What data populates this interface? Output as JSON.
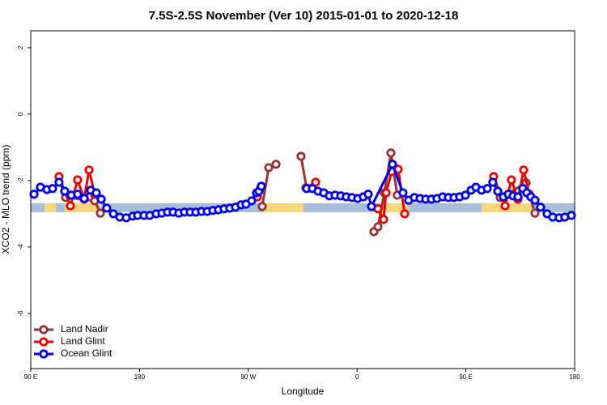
{
  "chart_data": {
    "type": "line",
    "title": "7.5S-2.5S November (Ver 10)   2015-01-01 to 2020-12-18",
    "x_label": "Longitude",
    "y_label": "XCO2 - MLO trend (ppm)",
    "xlim": [
      90,
      540
    ],
    "ylim": [
      -7.66,
      2.51
    ],
    "xticks": [
      {
        "value": 90,
        "label": "90 E"
      },
      {
        "value": 180,
        "label": "180"
      },
      {
        "value": 270,
        "label": "90 W"
      },
      {
        "value": 360,
        "label": "0"
      },
      {
        "value": 450,
        "label": "90 E"
      },
      {
        "value": 540,
        "label": "180"
      }
    ],
    "yticks": [
      2,
      0,
      -2,
      -4,
      -6
    ],
    "legend": "bottom-left",
    "series": [
      {
        "name": "Land Nadir",
        "color": "#993333",
        "x": [
          118.8,
          142.9,
          147.6,
          null,
          281.5,
          286.9,
          292.9,
          null,
          313.6,
          318.3,
          null,
          373.9,
          377.3,
          382.6,
          388.0,
          393.3,
          null,
          478.4,
          499.8,
          507.2
        ],
        "values": [
          -2.51,
          -2.61,
          -2.98,
          null,
          -2.78,
          -1.61,
          -1.51,
          null,
          -1.27,
          -2.24,
          null,
          -3.54,
          -3.39,
          -2.37,
          -1.17,
          -2.44,
          null,
          -2.51,
          -2.07,
          -2.98
        ]
      },
      {
        "name": "Land Glint",
        "color": "#ee0000",
        "x": [
          113.4,
          122.8,
          128.8,
          134.2,
          138.2,
          142.9,
          null,
          277.5,
          280.2,
          null,
          317.7,
          325.7,
          null,
          377.3,
          381.9,
          384.0,
          388.6,
          394.0,
          399.4,
          null,
          473.0,
          482.4,
          487.7,
          493.1,
          497.8,
          502.5
        ],
        "values": [
          -1.88,
          -2.76,
          -1.98,
          -2.56,
          -1.68,
          -2.41,
          null,
          -2.49,
          -2.22,
          null,
          -2.22,
          -2.05,
          null,
          -2.85,
          -3.17,
          -2.37,
          -1.73,
          -1.66,
          -3.0,
          null,
          -1.88,
          -2.76,
          -1.98,
          -2.56,
          -1.68,
          -2.41
        ]
      },
      {
        "name": "Ocean Glint",
        "color": "#0000ee",
        "x": [
          92.7,
          98.0,
          103.4,
          108.1,
          113.4,
          118.1,
          123.5,
          128.8,
          134.2,
          139.6,
          144.2,
          148.3,
          152.9,
          158.3,
          163.7,
          169.0,
          174.4,
          178.4,
          183.7,
          188.4,
          193.8,
          198.5,
          203.2,
          207.8,
          212.5,
          217.2,
          221.9,
          226.6,
          231.3,
          236.0,
          240.7,
          245.3,
          250.0,
          254.7,
          259.4,
          264.1,
          268.1,
          272.8,
          276.8,
          278.8,
          280.8,
          null,
          318.3,
          323.0,
          327.7,
          332.4,
          337.1,
          341.8,
          346.5,
          351.1,
          355.8,
          360.5,
          365.2,
          369.2,
          371.9,
          389.3,
          398.0,
          402.7,
          407.4,
          412.1,
          416.8,
          421.5,
          426.1,
          430.8,
          435.5,
          440.2,
          444.9,
          449.6,
          454.3,
          458.3,
          463.0,
          467.7,
          472.3,
          476.4,
          481.0,
          485.1,
          489.1,
          493.1,
          497.1,
          500.5,
          503.8,
          507.2,
          511.8,
          517.2,
          521.9,
          527.2,
          531.9,
          537.3
        ],
        "values": [
          -2.41,
          -2.2,
          -2.27,
          -2.24,
          -2.05,
          -2.32,
          -2.44,
          -2.41,
          -2.54,
          -2.29,
          -2.37,
          -2.56,
          -2.83,
          -3.0,
          -3.1,
          -3.12,
          -3.07,
          -3.05,
          -3.05,
          -3.05,
          -3.0,
          -2.98,
          -2.95,
          -2.95,
          -2.98,
          -2.95,
          -2.95,
          -2.95,
          -2.93,
          -2.93,
          -2.9,
          -2.88,
          -2.85,
          -2.83,
          -2.8,
          -2.73,
          -2.71,
          -2.61,
          -2.37,
          -2.32,
          -2.17,
          null,
          -2.24,
          -2.24,
          -2.32,
          -2.37,
          -2.46,
          -2.44,
          -2.46,
          -2.49,
          -2.51,
          -2.54,
          -2.49,
          -2.41,
          -2.78,
          -1.51,
          -2.37,
          -2.59,
          -2.51,
          -2.54,
          -2.56,
          -2.56,
          -2.54,
          -2.49,
          -2.51,
          -2.51,
          -2.49,
          -2.44,
          -2.29,
          -2.2,
          -2.29,
          -2.24,
          -2.05,
          -2.32,
          -2.49,
          -2.41,
          -2.46,
          -2.49,
          -2.24,
          -2.37,
          -2.49,
          -2.59,
          -2.8,
          -3.0,
          -3.1,
          -3.12,
          -3.1,
          -3.05
        ]
      }
    ]
  }
}
